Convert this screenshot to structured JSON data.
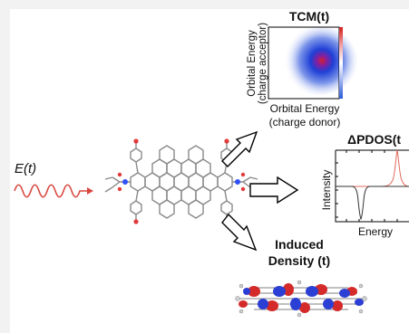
{
  "field": {
    "label": "E(t)",
    "color": "#d9473f"
  },
  "tcm": {
    "title": "TCM(t)",
    "ylabel_line1": "Orbital Energy",
    "ylabel_line2": "(charge acceptor)",
    "xlabel_line1": "Orbital Energy",
    "xlabel_line2": "(charge donor)",
    "colorbar_colors": [
      "#d32020",
      "#ffffff",
      "#2a5bd7"
    ]
  },
  "pdos": {
    "title": "ΔPDOS(t",
    "ylabel": "Intensity",
    "xlabel": "Energy",
    "series_colors": [
      "#e06a5c",
      "#333333"
    ]
  },
  "density": {
    "title_line1": "Induced",
    "title_line2": "Density (t)",
    "lobe_colors": [
      "#d42a2a",
      "#2b3fd4"
    ]
  },
  "molecule": {
    "carbon_color": "#8a8a8a",
    "nitrogen_color": "#3050f8",
    "oxygen_color": "#e23a3a"
  }
}
